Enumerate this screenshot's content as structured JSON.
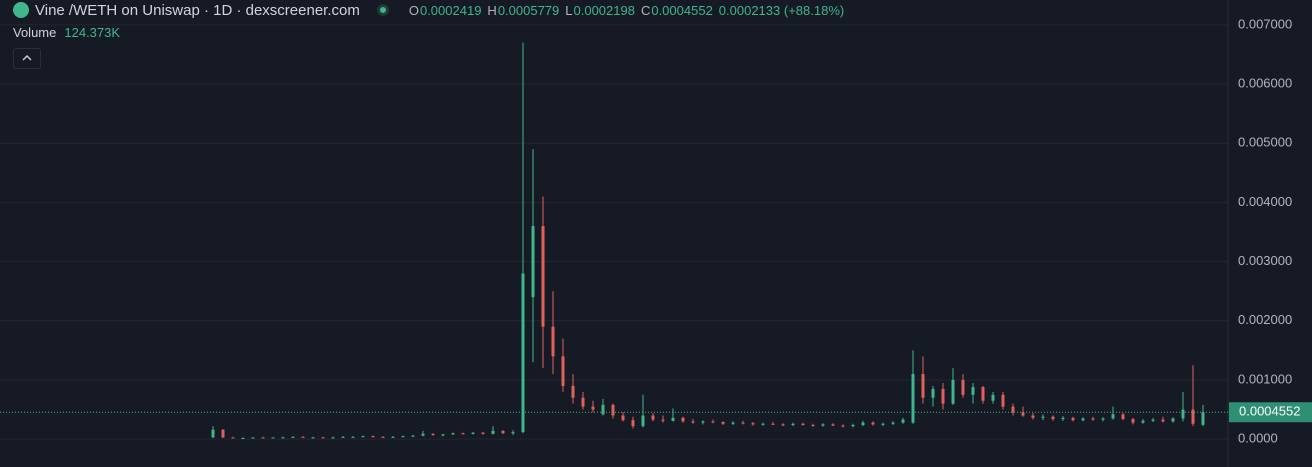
{
  "chart_data": {
    "type": "candlestick",
    "title": "Vine /WETH on Uniswap · 1D · dexscreener.com",
    "ohlc_labels": [
      "O",
      "H",
      "L",
      "C"
    ],
    "change": "0.0002133 (+88.18%)",
    "volume_label": "Volume",
    "volume_value": "124.373K",
    "up_color": "#3fb68b",
    "down_color": "#e0605c",
    "grid": true,
    "ylim": [
      -0.00047,
      0.00742
    ],
    "yticks": [
      {
        "value": 0,
        "label": "0.0000"
      },
      {
        "value": 0.001,
        "label": "0.001000"
      },
      {
        "value": 0.002,
        "label": "0.002000"
      },
      {
        "value": 0.003,
        "label": "0.003000"
      },
      {
        "value": 0.004,
        "label": "0.004000"
      },
      {
        "value": 0.005,
        "label": "0.005000"
      },
      {
        "value": 0.006,
        "label": "0.006000"
      },
      {
        "value": 0.007,
        "label": "0.007000"
      }
    ],
    "open": [
      3e-05,
      0.00016,
      3e-05,
      2e-05,
      2e-05,
      3e-05,
      2e-05,
      3e-05,
      3e-05,
      4e-05,
      3e-05,
      3e-05,
      2e-05,
      3e-05,
      4e-05,
      4e-05,
      5e-05,
      4e-05,
      3e-05,
      4e-05,
      5e-05,
      6e-05,
      9e-05,
      7e-05,
      8e-05,
      0.0001,
      9e-05,
      0.00011,
      9e-05,
      0.00014,
      0.0001,
      0.00012,
      0.0024,
      0.0036,
      0.0019,
      0.0014,
      0.0009,
      0.0007,
      0.00055,
      0.00042,
      0.00058,
      0.0004,
      0.00032,
      0.00022,
      0.0004,
      0.00033,
      0.00031,
      0.00036,
      0.0003,
      0.00028,
      0.0003,
      0.00029,
      0.00026,
      0.00028,
      0.00027,
      0.00025,
      0.00026,
      0.00025,
      0.00024,
      0.00026,
      0.00024,
      0.00023,
      0.00025,
      0.00023,
      0.00022,
      0.00024,
      0.00028,
      0.00025,
      0.00026,
      0.00028,
      0.00028,
      0.0011,
      0.0007,
      0.00085,
      0.0006,
      0.001,
      0.00075,
      0.00088,
      0.00065,
      0.00075,
      0.00055,
      0.00045,
      0.0004,
      0.00036,
      0.00038,
      0.00034,
      0.00036,
      0.00032,
      0.00035,
      0.00033,
      0.00035,
      0.00042,
      0.00034,
      0.00028,
      0.00031,
      0.00033,
      0.0003,
      0.00035,
      0.0005,
      0.0002419
    ],
    "high": [
      0.00022,
      0.00017,
      4e-05,
      3e-05,
      3e-05,
      4e-05,
      3e-05,
      4e-05,
      5e-05,
      5e-05,
      4e-05,
      4e-05,
      4e-05,
      5e-05,
      5e-05,
      6e-05,
      6e-05,
      5e-05,
      5e-05,
      6e-05,
      7e-05,
      0.00014,
      0.0001,
      9e-05,
      0.00011,
      0.00011,
      0.00012,
      0.00012,
      0.00022,
      0.00015,
      0.00015,
      0.0067,
      0.0049,
      0.0041,
      0.0025,
      0.0017,
      0.0011,
      0.0008,
      0.00065,
      0.00068,
      0.0006,
      0.00046,
      0.00038,
      0.00075,
      0.00044,
      0.0004,
      0.00052,
      0.00038,
      0.00034,
      0.00032,
      0.00033,
      0.0003,
      0.0003,
      0.00031,
      0.00029,
      0.00028,
      0.00029,
      0.00027,
      0.00028,
      0.00028,
      0.00026,
      0.00027,
      0.00027,
      0.00025,
      0.00026,
      0.00031,
      0.0003,
      0.00028,
      0.0003,
      0.00036,
      0.0015,
      0.0014,
      0.0009,
      0.00095,
      0.0012,
      0.0011,
      0.00095,
      0.0009,
      0.0008,
      0.0008,
      0.0006,
      0.00055,
      0.00044,
      0.00042,
      0.0004,
      0.00039,
      0.00038,
      0.00037,
      0.00038,
      0.00037,
      0.00055,
      0.00044,
      0.00036,
      0.00034,
      0.00036,
      0.00038,
      0.00037,
      0.0008,
      0.00125,
      0.0005779
    ],
    "low": [
      2e-05,
      2e-05,
      2e-05,
      1e-05,
      1e-05,
      2e-05,
      2e-05,
      2e-05,
      2e-05,
      3e-05,
      2e-05,
      2e-05,
      1e-05,
      2e-05,
      3e-05,
      3e-05,
      3e-05,
      2e-05,
      2e-05,
      3e-05,
      4e-05,
      5e-05,
      6e-05,
      5e-05,
      7e-05,
      8e-05,
      8e-05,
      8e-05,
      8e-05,
      9e-05,
      7e-05,
      0.0001,
      0.0013,
      0.0012,
      0.0011,
      0.0008,
      0.0006,
      0.0005,
      0.00045,
      0.0004,
      0.00035,
      0.0003,
      0.00018,
      0.0002,
      0.0003,
      0.00028,
      0.0003,
      0.00028,
      0.00026,
      0.00025,
      0.00027,
      0.00024,
      0.00024,
      0.00025,
      0.00023,
      0.00023,
      0.00024,
      0.00022,
      0.00022,
      0.00023,
      0.00021,
      0.00021,
      0.00022,
      0.0002,
      0.0002,
      0.00022,
      0.00023,
      0.00022,
      0.00024,
      0.00026,
      0.00026,
      0.0006,
      0.00055,
      0.0005,
      0.00058,
      0.0007,
      0.0006,
      0.0006,
      0.0006,
      0.0005,
      0.0004,
      0.00038,
      0.00033,
      0.00032,
      0.00031,
      0.00031,
      0.0003,
      0.0003,
      0.00031,
      0.0003,
      0.00033,
      0.00032,
      0.00025,
      0.00026,
      0.00029,
      0.00028,
      0.00028,
      0.0003,
      0.00022,
      0.0002198
    ],
    "close": [
      0.00016,
      3e-05,
      2e-05,
      2e-05,
      3e-05,
      2e-05,
      3e-05,
      3e-05,
      4e-05,
      3e-05,
      3e-05,
      2e-05,
      3e-05,
      4e-05,
      4e-05,
      5e-05,
      4e-05,
      3e-05,
      4e-05,
      5e-05,
      6e-05,
      9e-05,
      7e-05,
      8e-05,
      0.0001,
      9e-05,
      0.00011,
      9e-05,
      0.00014,
      0.0001,
      0.00012,
      0.0028,
      0.0036,
      0.0019,
      0.0014,
      0.0009,
      0.0007,
      0.00055,
      0.0005,
      0.00058,
      0.0004,
      0.00032,
      0.00022,
      0.0004,
      0.00033,
      0.00031,
      0.00036,
      0.0003,
      0.00028,
      0.0003,
      0.00029,
      0.00026,
      0.00028,
      0.00027,
      0.00025,
      0.00026,
      0.00025,
      0.00024,
      0.00026,
      0.00024,
      0.00023,
      0.00025,
      0.00023,
      0.00022,
      0.00024,
      0.00028,
      0.00025,
      0.00026,
      0.00028,
      0.00033,
      0.0011,
      0.0007,
      0.00085,
      0.0006,
      0.001,
      0.00075,
      0.00088,
      0.00065,
      0.00075,
      0.00055,
      0.00045,
      0.0004,
      0.00036,
      0.00038,
      0.00034,
      0.00036,
      0.00032,
      0.00035,
      0.00033,
      0.00035,
      0.00042,
      0.00034,
      0.00028,
      0.00031,
      0.00033,
      0.0003,
      0.00035,
      0.0005,
      0.00026,
      0.0004552
    ]
  }
}
